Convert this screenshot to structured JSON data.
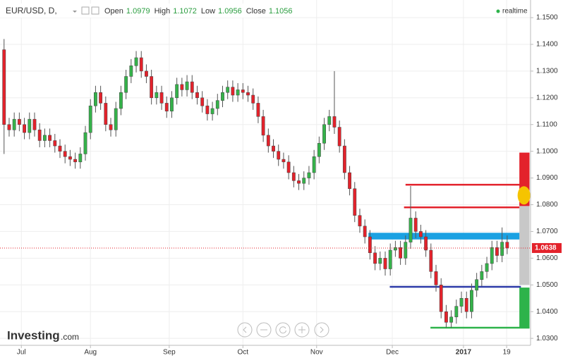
{
  "chart_data": {
    "type": "candlestick",
    "symbol": "EUR/USD, D,",
    "ohlc_labels": [
      "Open",
      "High",
      "Low",
      "Close"
    ],
    "ohlc_values": [
      1.0979,
      1.1072,
      1.0956,
      1.1056
    ],
    "status": "realtime",
    "logo": "Investing",
    "logo_suffix": ".com",
    "up_color": "#35b24a",
    "down_color": "#e3222b",
    "grid": true,
    "xlim": [
      -0.8,
      103.6
    ],
    "xticks": [
      {
        "value": 3.4,
        "label": "Jul"
      },
      {
        "value": 17,
        "label": "Aug"
      },
      {
        "value": 32.5,
        "label": "Sep"
      },
      {
        "value": 47,
        "label": "Oct"
      },
      {
        "value": 61.5,
        "label": "Nov"
      },
      {
        "value": 76.4,
        "label": "Dec"
      },
      {
        "value": 90.4,
        "label": "2017"
      },
      {
        "value": 98.9,
        "label": "19"
      }
    ],
    "ylim": [
      1.0274,
      1.1566
    ],
    "yticks": [
      {
        "value": 1.03,
        "label": "1.0300"
      },
      {
        "value": 1.04,
        "label": "1.0400"
      },
      {
        "value": 1.05,
        "label": "1.0500"
      },
      {
        "value": 1.06,
        "label": "1.0600"
      },
      {
        "value": 1.07,
        "label": "1.0700"
      },
      {
        "value": 1.08,
        "label": "1.0800"
      },
      {
        "value": 1.09,
        "label": "1.0900"
      },
      {
        "value": 1.1,
        "label": "1.1000"
      },
      {
        "value": 1.11,
        "label": "1.1100"
      },
      {
        "value": 1.12,
        "label": "1.1200"
      },
      {
        "value": 1.13,
        "label": "1.1300"
      },
      {
        "value": 1.14,
        "label": "1.1400"
      },
      {
        "value": 1.15,
        "label": "1.1500"
      }
    ],
    "last_price": 1.0638,
    "last_price_color": "#e3222b",
    "open": [
      1.138,
      1.11,
      1.108,
      1.112,
      1.11,
      1.107,
      1.112,
      1.108,
      1.104,
      1.106,
      1.104,
      1.102,
      1.1,
      1.098,
      1.097,
      1.096,
      1.099,
      1.107,
      1.117,
      1.122,
      1.118,
      1.11,
      1.108,
      1.116,
      1.122,
      1.128,
      1.132,
      1.135,
      1.13,
      1.128,
      1.12,
      1.122,
      1.118,
      1.115,
      1.12,
      1.125,
      1.123,
      1.126,
      1.122,
      1.12,
      1.117,
      1.114,
      1.116,
      1.119,
      1.122,
      1.124,
      1.121,
      1.123,
      1.122,
      1.121,
      1.118,
      1.113,
      1.106,
      1.102,
      1.1,
      1.097,
      1.096,
      1.092,
      1.089,
      1.088,
      1.09,
      1.092,
      1.098,
      1.103,
      1.11,
      1.113,
      1.109,
      1.102,
      1.092,
      1.086,
      1.076,
      1.072,
      1.068,
      1.062,
      1.058,
      1.06,
      1.056,
      1.063,
      1.064,
      1.06,
      1.066,
      1.075,
      1.07,
      1.068,
      1.063,
      1.055,
      1.05,
      1.04,
      1.036,
      1.038,
      1.042,
      1.045,
      1.04,
      1.048,
      1.052,
      1.055,
      1.058,
      1.064,
      1.061,
      1.066
    ],
    "high": [
      1.142,
      1.1125,
      1.1145,
      1.1145,
      1.1125,
      1.1145,
      1.1145,
      1.1105,
      1.1085,
      1.1085,
      1.1065,
      1.1045,
      1.1025,
      1.1005,
      1.0995,
      1.1015,
      1.1095,
      1.1195,
      1.1245,
      1.1245,
      1.1205,
      1.1125,
      1.1185,
      1.1245,
      1.1305,
      1.1345,
      1.1375,
      1.1375,
      1.1325,
      1.1305,
      1.1245,
      1.1245,
      1.1205,
      1.1225,
      1.1275,
      1.1275,
      1.1285,
      1.1285,
      1.1245,
      1.1225,
      1.1195,
      1.1185,
      1.1215,
      1.1245,
      1.1265,
      1.1265,
      1.1255,
      1.1255,
      1.1245,
      1.1235,
      1.1205,
      1.1155,
      1.1085,
      1.1045,
      1.1025,
      1.0995,
      1.0985,
      1.0945,
      1.0915,
      1.0925,
      1.0945,
      1.1005,
      1.1055,
      1.1125,
      1.1155,
      1.13,
      1.1115,
      1.1045,
      1.0945,
      1.0885,
      1.0785,
      1.0745,
      1.0705,
      1.0645,
      1.0625,
      1.0625,
      1.0655,
      1.0665,
      1.0665,
      1.0685,
      1.087,
      1.0775,
      1.0725,
      1.0705,
      1.0655,
      1.0575,
      1.0525,
      1.0425,
      1.0405,
      1.0445,
      1.0475,
      1.0475,
      1.0505,
      1.0545,
      1.0575,
      1.0605,
      1.0665,
      1.0665,
      1.0715,
      1.0685
    ],
    "low": [
      1.099,
      1.1055,
      1.1055,
      1.1075,
      1.1045,
      1.1045,
      1.1055,
      1.1015,
      1.1015,
      1.1015,
      1.0995,
      1.0975,
      1.0955,
      1.0945,
      1.0935,
      1.0935,
      1.0965,
      1.1045,
      1.1145,
      1.1155,
      1.1075,
      1.1055,
      1.1055,
      1.1135,
      1.1195,
      1.1255,
      1.1295,
      1.1275,
      1.1255,
      1.1175,
      1.1175,
      1.1155,
      1.1125,
      1.1125,
      1.1175,
      1.1205,
      1.1205,
      1.1195,
      1.1175,
      1.1145,
      1.1115,
      1.1115,
      1.1135,
      1.1165,
      1.1195,
      1.1185,
      1.1185,
      1.1195,
      1.1185,
      1.1155,
      1.1105,
      1.1035,
      1.0995,
      1.0975,
      1.0945,
      1.0935,
      1.0895,
      1.0865,
      1.0855,
      1.0855,
      1.0875,
      1.0895,
      1.0955,
      1.1005,
      1.1075,
      1.1065,
      1.0995,
      1.0895,
      1.0835,
      1.0735,
      1.0695,
      1.0655,
      1.0595,
      1.0555,
      1.0555,
      1.0535,
      1.0535,
      1.0605,
      1.0575,
      1.0575,
      1.0635,
      1.0675,
      1.0655,
      1.0605,
      1.0525,
      1.0475,
      1.0375,
      1.034,
      1.034,
      1.0355,
      1.0395,
      1.0375,
      1.0375,
      1.0455,
      1.0495,
      1.0525,
      1.0555,
      1.0585,
      1.0585,
      1.0615
    ],
    "close": [
      1.11,
      1.108,
      1.112,
      1.11,
      1.107,
      1.112,
      1.108,
      1.104,
      1.106,
      1.104,
      1.102,
      1.1,
      1.098,
      1.097,
      1.096,
      1.099,
      1.107,
      1.117,
      1.122,
      1.118,
      1.11,
      1.108,
      1.116,
      1.122,
      1.128,
      1.132,
      1.135,
      1.13,
      1.128,
      1.12,
      1.122,
      1.118,
      1.115,
      1.12,
      1.125,
      1.123,
      1.126,
      1.122,
      1.12,
      1.117,
      1.114,
      1.116,
      1.119,
      1.122,
      1.124,
      1.121,
      1.123,
      1.122,
      1.121,
      1.118,
      1.113,
      1.106,
      1.102,
      1.1,
      1.097,
      1.096,
      1.092,
      1.089,
      1.088,
      1.09,
      1.092,
      1.098,
      1.103,
      1.11,
      1.113,
      1.109,
      1.102,
      1.092,
      1.086,
      1.076,
      1.072,
      1.068,
      1.062,
      1.058,
      1.06,
      1.056,
      1.063,
      1.064,
      1.06,
      1.066,
      1.075,
      1.07,
      1.068,
      1.063,
      1.055,
      1.05,
      1.04,
      1.036,
      1.038,
      1.042,
      1.045,
      1.04,
      1.048,
      1.052,
      1.055,
      1.058,
      1.064,
      1.061,
      1.066,
      1.0638
    ],
    "drawings": [
      {
        "shape": "band",
        "color": "#1ba1e2",
        "x": [
          71.7,
          101.6
        ],
        "y": [
          1.067,
          1.0695
        ]
      },
      {
        "shape": "line",
        "color": "#e3222b",
        "x": [
          79,
          101.7
        ],
        "y": [
          1.0875,
          1.0875
        ]
      },
      {
        "shape": "line",
        "color": "#e3222b",
        "x": [
          78.7,
          101.7
        ],
        "y": [
          1.079,
          1.079
        ]
      },
      {
        "shape": "line",
        "color": "#2c3aa8",
        "x": [
          75.9,
          101.7
        ],
        "y": [
          1.0493,
          1.0493
        ]
      },
      {
        "shape": "line",
        "color": "#2db34a",
        "x": [
          83.9,
          103.4
        ],
        "y": [
          1.034,
          1.034
        ]
      },
      {
        "shape": "band",
        "color": "#e3222b",
        "x": [
          101.4,
          103.4
        ],
        "y": [
          1.0795,
          1.0995
        ]
      },
      {
        "shape": "band",
        "color": "#c8c8c8",
        "x": [
          101.4,
          103.4
        ],
        "y": [
          1.05,
          1.0795
        ]
      },
      {
        "shape": "band",
        "color": "#2db34a",
        "x": [
          101.4,
          103.4
        ],
        "y": [
          1.034,
          1.049
        ]
      },
      {
        "shape": "dot",
        "color": "#f5c400",
        "x": [
          102.3,
          102.3
        ],
        "y": [
          1.0835,
          1.0835
        ]
      }
    ]
  }
}
